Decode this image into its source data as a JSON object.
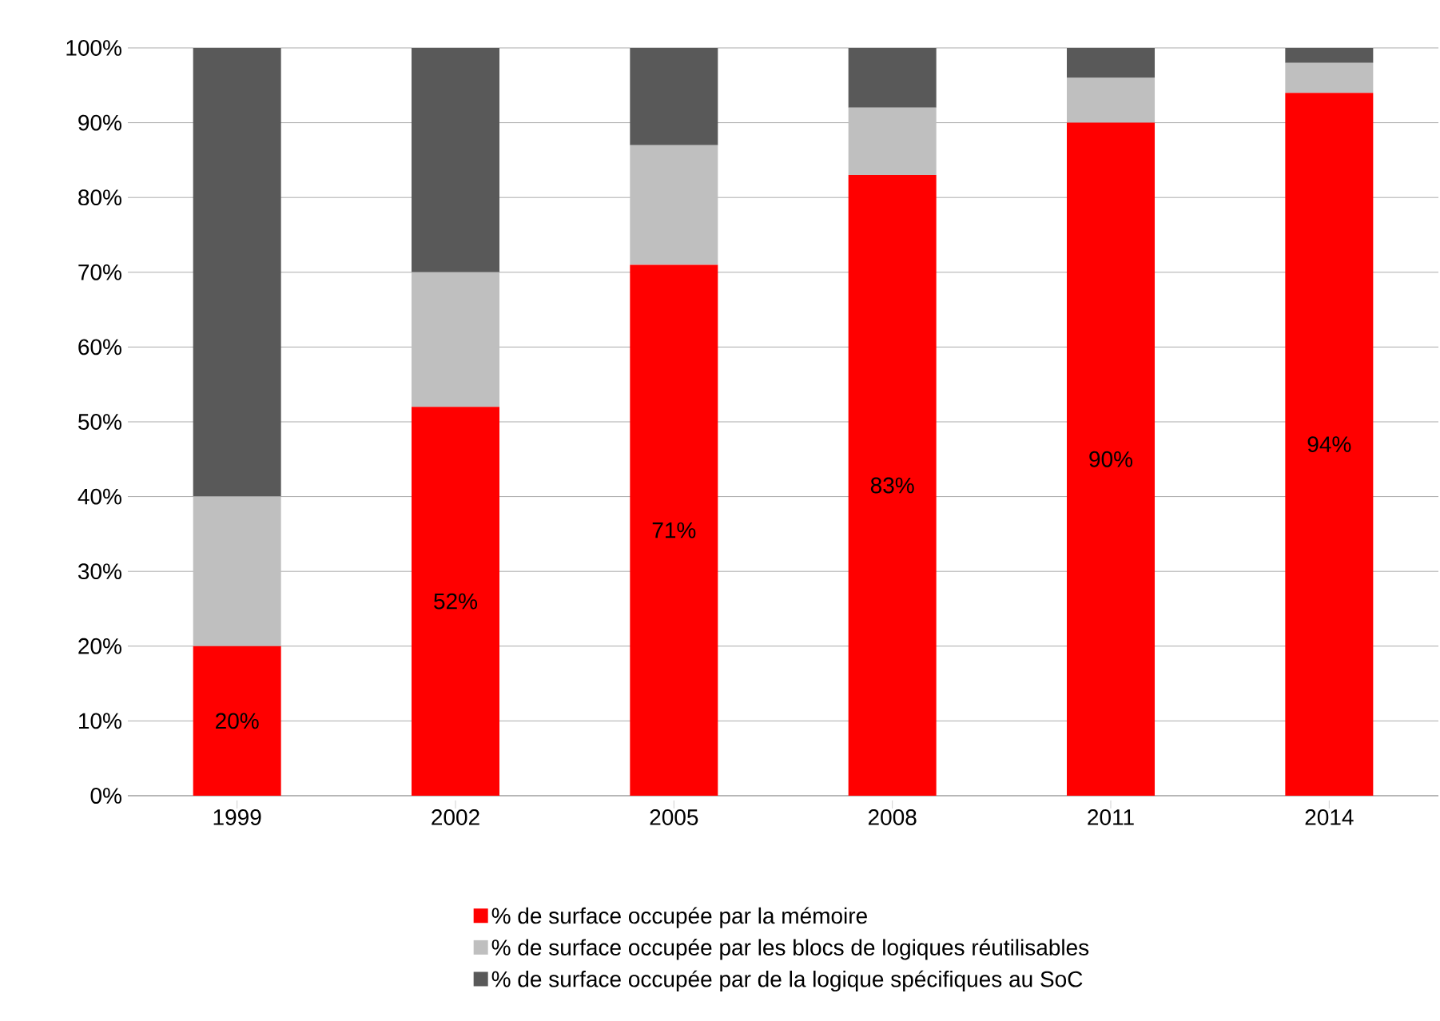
{
  "chart_data": {
    "type": "bar",
    "stacked": true,
    "categories": [
      "1999",
      "2002",
      "2005",
      "2008",
      "2011",
      "2014"
    ],
    "series": [
      {
        "name": "% de surface occupée par la mémoire",
        "color": "#ff0000",
        "values": [
          20,
          52,
          71,
          83,
          90,
          94
        ],
        "value_labels": [
          "20%",
          "52%",
          "71%",
          "83%",
          "90%",
          "94%"
        ]
      },
      {
        "name": "% de surface occupée par les blocs de logiques réutilisables",
        "color": "#bfbfbf",
        "values": [
          20,
          18,
          16,
          9,
          6,
          4
        ]
      },
      {
        "name": "% de surface occupée par de la logique spécifiques au SoC",
        "color": "#595959",
        "values": [
          60,
          30,
          13,
          8,
          4,
          2
        ]
      }
    ],
    "ylim": [
      0,
      100
    ],
    "yticks": [
      {
        "value": 0,
        "label": "0%"
      },
      {
        "value": 10,
        "label": "10%"
      },
      {
        "value": 20,
        "label": "20%"
      },
      {
        "value": 30,
        "label": "30%"
      },
      {
        "value": 40,
        "label": "40%"
      },
      {
        "value": 50,
        "label": "50%"
      },
      {
        "value": 60,
        "label": "60%"
      },
      {
        "value": 70,
        "label": "70%"
      },
      {
        "value": 80,
        "label": "80%"
      },
      {
        "value": 90,
        "label": "90%"
      },
      {
        "value": 100,
        "label": "100%"
      }
    ],
    "grid": "y",
    "legend": "bottom"
  }
}
